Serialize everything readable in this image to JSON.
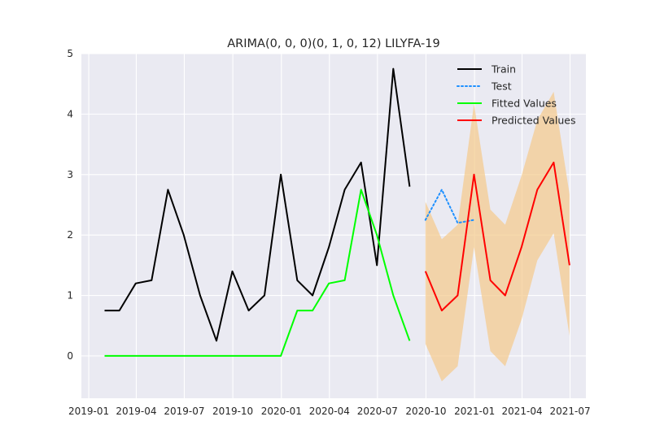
{
  "chart_data": {
    "type": "line",
    "title": "ARIMA(0, 0, 0)(0, 1, 0, 12) LILYFA-19",
    "xlabel": "",
    "ylabel": "",
    "x_ticks": [
      "2019-01",
      "2019-04",
      "2019-07",
      "2019-10",
      "2020-01",
      "2020-04",
      "2020-07",
      "2020-10",
      "2021-01",
      "2021-04",
      "2021-07"
    ],
    "y_ticks": [
      "0",
      "1",
      "2",
      "3",
      "4",
      "5"
    ],
    "ylim": [
      -0.7,
      5.0
    ],
    "xlim": [
      "2018-12-18",
      "2021-07-31"
    ],
    "grid": true,
    "legend_position": "upper-right",
    "series": [
      {
        "name": "Train",
        "color": "#000000",
        "style": "solid",
        "x": [
          "2019-01-31",
          "2019-02-28",
          "2019-03-31",
          "2019-04-30",
          "2019-05-31",
          "2019-06-30",
          "2019-07-31",
          "2019-08-31",
          "2019-09-30",
          "2019-10-31",
          "2019-11-30",
          "2019-12-31",
          "2020-01-31",
          "2020-02-29",
          "2020-03-31",
          "2020-04-30",
          "2020-05-31",
          "2020-06-30",
          "2020-07-31",
          "2020-08-31"
        ],
        "values": [
          0.75,
          0.75,
          1.2,
          1.25,
          2.75,
          2.0,
          1.0,
          0.25,
          1.4,
          0.75,
          1.0,
          3.0,
          1.25,
          1.0,
          1.8,
          2.75,
          3.2,
          1.5,
          4.75,
          2.8
        ]
      },
      {
        "name": "Test",
        "color": "#1e90ff",
        "style": "dotted",
        "x": [
          "2020-09-30",
          "2020-10-31",
          "2020-11-30",
          "2020-12-31"
        ],
        "values": [
          2.25,
          2.75,
          2.2,
          2.25
        ]
      },
      {
        "name": "Fitted Values",
        "color": "#00ff00",
        "style": "solid",
        "x": [
          "2019-01-31",
          "2019-02-28",
          "2019-03-31",
          "2019-04-30",
          "2019-05-31",
          "2019-06-30",
          "2019-07-31",
          "2019-08-31",
          "2019-09-30",
          "2019-10-31",
          "2019-11-30",
          "2019-12-31",
          "2020-01-31",
          "2020-02-29",
          "2020-03-31",
          "2020-04-30",
          "2020-05-31",
          "2020-06-30",
          "2020-07-31",
          "2020-08-31"
        ],
        "values": [
          0,
          0,
          0,
          0,
          0,
          0,
          0,
          0,
          0,
          0,
          0,
          0,
          0.75,
          0.75,
          1.2,
          1.25,
          2.75,
          2.0,
          1.0,
          0.25
        ]
      },
      {
        "name": "Predicted Values",
        "color": "#ff0000",
        "style": "solid",
        "x": [
          "2020-09-30",
          "2020-10-31",
          "2020-11-30",
          "2020-12-31",
          "2021-01-31",
          "2021-02-28",
          "2021-03-31",
          "2021-04-30",
          "2021-05-31",
          "2021-06-30"
        ],
        "values": [
          1.4,
          0.75,
          1.0,
          3.0,
          1.25,
          1.0,
          1.8,
          2.75,
          3.2,
          1.5
        ]
      }
    ],
    "confidence_band": {
      "color": "#f5c98a",
      "opacity": 0.7,
      "x": [
        "2020-09-30",
        "2020-10-31",
        "2020-11-30",
        "2020-12-31",
        "2021-01-31",
        "2021-02-28",
        "2021-03-31",
        "2021-04-30",
        "2021-05-31",
        "2021-06-30"
      ],
      "lower": [
        0.2,
        -0.42,
        -0.17,
        1.8,
        0.08,
        -0.17,
        0.6,
        1.58,
        2.03,
        0.33
      ],
      "upper": [
        2.55,
        1.93,
        2.17,
        4.17,
        2.42,
        2.17,
        2.98,
        3.9,
        4.37,
        2.67
      ]
    }
  }
}
